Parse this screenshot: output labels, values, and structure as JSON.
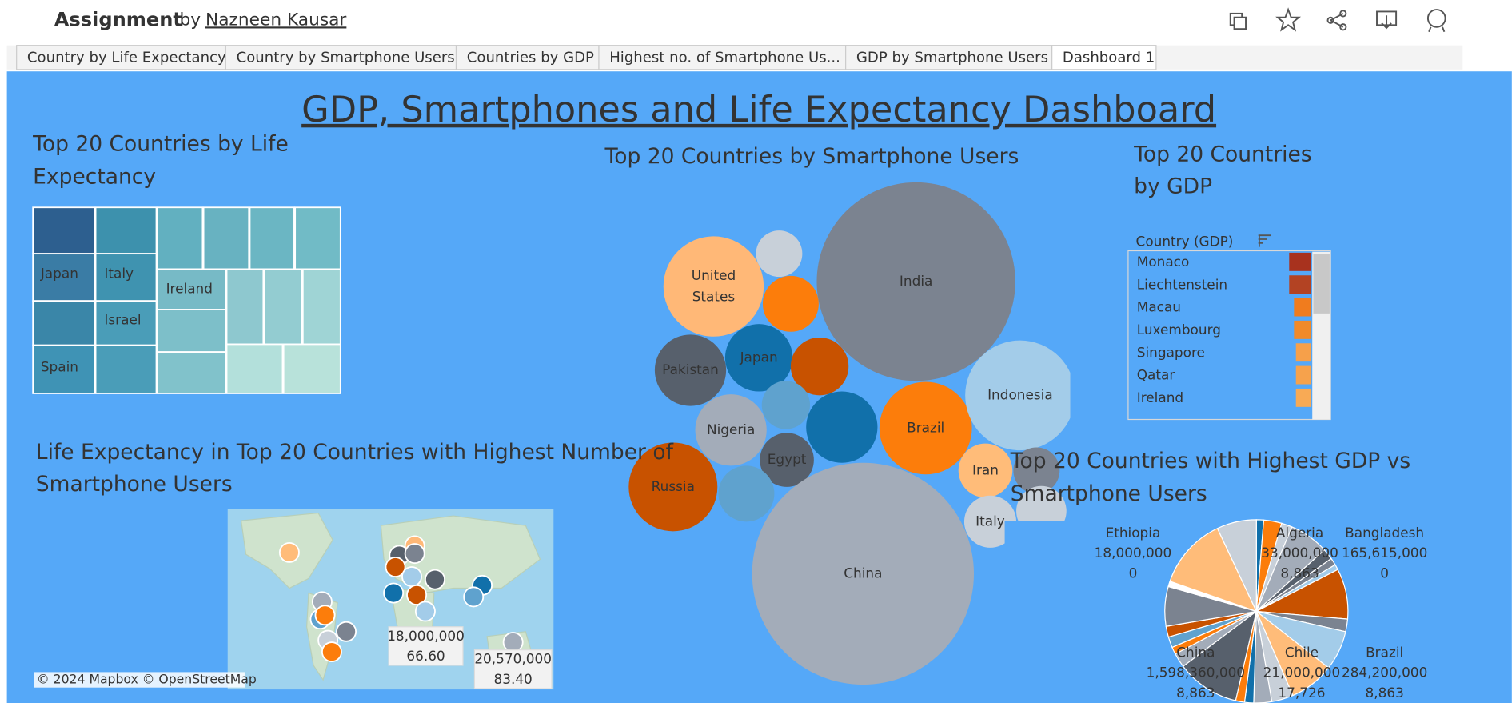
{
  "header": {
    "title": "Assignment",
    "by": "by",
    "author": "Nazneen Kausar"
  },
  "tabs": [
    "Country by Life Expectancy",
    "Country by Smartphone Users",
    "Countries by GDP",
    "Highest no. of Smartphone Us...",
    "GDP by Smartphone Users",
    "Dashboard 1"
  ],
  "dashboard": {
    "title": "GDP, Smartphones  and Life Expectancy Dashboard",
    "treemap": {
      "title": [
        "Top 20 Countries by Life",
        "Expectancy"
      ],
      "labels": [
        "Japan",
        "Italy",
        "Ireland",
        "Israel",
        "Spain"
      ]
    },
    "bubbles": {
      "title": "Top 20 Countries by Smartphone Users",
      "labels": [
        "India",
        "United States",
        "Pakistan",
        "Japan",
        "Nigeria",
        "Egypt",
        "Brazil",
        "Indonesia",
        "Russia",
        "China",
        "Iran",
        "Italy"
      ]
    },
    "gdp_list": {
      "title": [
        "Top 20 Countries",
        "by GDP"
      ],
      "header": "Country (GDP)",
      "rows": [
        "Monaco",
        "Liechtenstein",
        "Macau",
        "Luxembourg",
        "Singapore",
        "Qatar",
        "Ireland"
      ]
    },
    "map": {
      "title": [
        "Life Expectancy in Top 20 Countries with Highest Number of",
        "Smartphone Users"
      ],
      "tooltips": [
        [
          "18,000,000",
          "66.60"
        ],
        [
          "20,570,000",
          "83.40"
        ]
      ],
      "attribution": "© 2024 Mapbox  © OpenStreetMap"
    },
    "pie": {
      "title": [
        "Top 20 Countries with Highest GDP vs",
        "Smartphone Users"
      ],
      "labels": [
        [
          "Ethiopia",
          "18,000,000",
          "0"
        ],
        [
          "Algeria",
          "33,000,000",
          "8,863"
        ],
        [
          "Bangladesh",
          "165,615,000",
          "0"
        ],
        [
          "China",
          "1,598,360,000",
          "8,863"
        ],
        [
          "Chile",
          "21,000,000",
          "17,726"
        ],
        [
          "Brazil",
          "284,200,000",
          "8,863"
        ]
      ]
    }
  }
}
